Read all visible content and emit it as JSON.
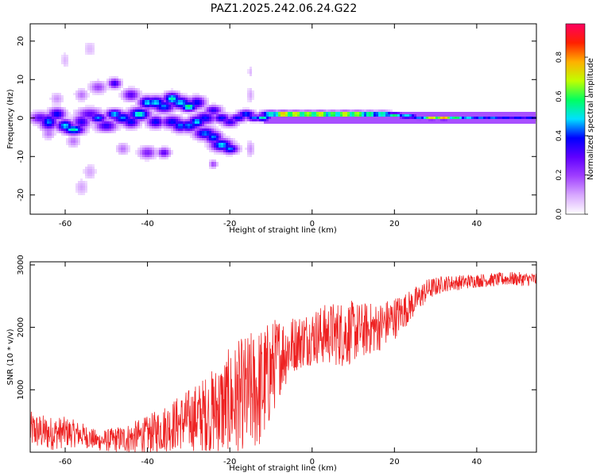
{
  "title": "PAZ1.2025.242.06.24.G22",
  "colors": {
    "axis": "#000000",
    "snr_line": "#ee2222",
    "colormap": [
      "#ffffff",
      "#d8a8ff",
      "#a040ff",
      "#6000ff",
      "#0000ff",
      "#00e0ff",
      "#00ff60",
      "#c0ff00",
      "#ffb000",
      "#ff2000",
      "#ff0060"
    ]
  },
  "chart_data": [
    {
      "type": "heatmap",
      "title": "PAZ1.2025.242.06.24.G22",
      "xlabel": "Height of straight line (km)",
      "ylabel": "Frequency (Hz)",
      "xlim": [
        -68.5,
        54.5
      ],
      "ylim": [
        -25,
        24.5
      ],
      "xticks": [
        -60,
        -40,
        -20,
        0,
        20,
        40
      ],
      "yticks": [
        -20,
        -10,
        0,
        10,
        20
      ],
      "colorbar": {
        "label": "Normalized spectral amplitude",
        "range": [
          0,
          0.97
        ],
        "ticks": [
          "0.0",
          "0.2",
          "0.4",
          "0.6",
          "0.8"
        ],
        "tick_values": [
          0,
          0.2,
          0.4,
          0.6,
          0.8
        ]
      },
      "blobs": [
        [
          -66,
          0,
          2.5,
          1.5,
          0.3
        ],
        [
          -64,
          -1,
          2,
          2,
          0.45
        ],
        [
          -62,
          1,
          2,
          1.5,
          0.4
        ],
        [
          -60,
          -2,
          2,
          1.5,
          0.5
        ],
        [
          -58,
          -3,
          2.5,
          1.2,
          0.55
        ],
        [
          -56,
          -1,
          2,
          1.8,
          0.35
        ],
        [
          -54,
          1,
          3,
          1.5,
          0.3
        ],
        [
          -52,
          0,
          2,
          1.2,
          0.45
        ],
        [
          -50,
          -2,
          2.5,
          1.5,
          0.35
        ],
        [
          -48,
          1,
          2,
          1.2,
          0.5
        ],
        [
          -46,
          0,
          2.5,
          1.5,
          0.45
        ],
        [
          -44,
          -1,
          2,
          1.5,
          0.4
        ],
        [
          -42,
          1,
          2.5,
          1.5,
          0.55
        ],
        [
          -40,
          4,
          2,
          1.5,
          0.5
        ],
        [
          -38,
          4,
          2.5,
          1.5,
          0.5
        ],
        [
          -36,
          3,
          2.5,
          1.5,
          0.45
        ],
        [
          -34,
          5,
          2,
          1.5,
          0.55
        ],
        [
          -32,
          4,
          2.5,
          1.5,
          0.5
        ],
        [
          -30,
          3,
          2,
          1.2,
          0.6
        ],
        [
          -28,
          4,
          2,
          1.5,
          0.4
        ],
        [
          -34,
          -1,
          2.5,
          1.5,
          0.4
        ],
        [
          -32,
          -2,
          2,
          1.5,
          0.45
        ],
        [
          -30,
          -2,
          2.5,
          1.5,
          0.45
        ],
        [
          -28,
          -1,
          2,
          1.5,
          0.5
        ],
        [
          -26,
          0,
          2.5,
          1.5,
          0.4
        ],
        [
          -38,
          -1,
          2,
          1.5,
          0.4
        ],
        [
          -26,
          -4,
          2.5,
          1.5,
          0.45
        ],
        [
          -24,
          -5,
          2,
          1.5,
          0.45
        ],
        [
          -22,
          -7,
          2.5,
          1.5,
          0.5
        ],
        [
          -20,
          -8,
          2,
          1.2,
          0.45
        ],
        [
          -24,
          2,
          2,
          1.2,
          0.35
        ],
        [
          -22,
          0,
          2,
          1.2,
          0.4
        ],
        [
          -20,
          -1,
          2,
          1.2,
          0.35
        ],
        [
          -18,
          0,
          2,
          1,
          0.4
        ],
        [
          -16,
          1,
          2,
          1,
          0.45
        ],
        [
          -14,
          0,
          2,
          0.8,
          0.45
        ],
        [
          -12,
          0,
          2,
          0.8,
          0.55
        ],
        [
          -10,
          1,
          2.5,
          0.8,
          0.6
        ],
        [
          -7,
          1,
          2.5,
          0.7,
          0.9
        ],
        [
          -4,
          1,
          2.5,
          0.7,
          0.85
        ],
        [
          -1,
          1,
          2.5,
          0.7,
          0.8
        ],
        [
          2,
          1,
          2.5,
          0.7,
          0.85
        ],
        [
          5,
          1,
          2,
          0.7,
          0.75
        ],
        [
          8,
          1,
          2.5,
          0.7,
          0.85
        ],
        [
          11,
          1,
          2.5,
          0.7,
          0.8
        ],
        [
          14,
          1,
          2,
          0.7,
          0.7
        ],
        [
          17,
          1,
          2.5,
          0.7,
          0.65
        ],
        [
          20,
          0.8,
          2.5,
          0.6,
          0.6
        ],
        [
          23,
          0.5,
          2.5,
          0.6,
          0.55
        ],
        [
          26,
          0,
          2.5,
          0.6,
          0.45
        ],
        [
          29,
          0,
          2.5,
          0.5,
          0.75
        ],
        [
          32,
          0,
          2.5,
          0.5,
          0.8
        ],
        [
          35,
          0,
          2.5,
          0.5,
          0.6
        ],
        [
          38,
          0,
          2.5,
          0.5,
          0.5
        ],
        [
          41,
          0,
          2.5,
          0.5,
          0.45
        ],
        [
          44,
          0,
          2.5,
          0.5,
          0.45
        ],
        [
          47,
          0,
          2.5,
          0.5,
          0.4
        ],
        [
          50,
          0,
          2.5,
          0.5,
          0.4
        ],
        [
          53,
          0,
          2.5,
          0.5,
          0.4
        ],
        [
          -48,
          9,
          1.5,
          1.2,
          0.35
        ],
        [
          -52,
          8,
          2,
          1.5,
          0.2
        ],
        [
          -44,
          6,
          2,
          1.5,
          0.3
        ],
        [
          -56,
          6,
          1.5,
          1.5,
          0.15
        ],
        [
          -62,
          5,
          1.5,
          1.5,
          0.12
        ],
        [
          -36,
          -9,
          1.5,
          1.2,
          0.3
        ],
        [
          -40,
          -9,
          2,
          1.5,
          0.25
        ],
        [
          -46,
          -8,
          1.5,
          1.5,
          0.15
        ],
        [
          -58,
          -6,
          1.5,
          1.5,
          0.15
        ],
        [
          -54,
          -14,
          1.5,
          2,
          0.1
        ],
        [
          -56,
          -18,
          1.5,
          2,
          0.1
        ],
        [
          -54,
          18,
          1.5,
          2,
          0.08
        ],
        [
          -60,
          15,
          1,
          2,
          0.08
        ],
        [
          -15,
          -8,
          1,
          2,
          0.12
        ],
        [
          -15,
          6,
          0.8,
          2,
          0.1
        ],
        [
          -15,
          12,
          0.6,
          1.5,
          0.08
        ],
        [
          -24,
          -12,
          1,
          1,
          0.2
        ],
        [
          -64,
          -4,
          1.5,
          1.5,
          0.15
        ]
      ],
      "band": {
        "x_from": -12,
        "x_to": 54.5,
        "y_center": 0,
        "half_width": 1.6,
        "strength": 0.18
      }
    },
    {
      "type": "line",
      "title": "",
      "xlabel": "Height of straight line (km)",
      "ylabel": "SNR (10 * v/v)",
      "xlim": [
        -68.5,
        54.5
      ],
      "ylim": [
        0,
        3050
      ],
      "xticks": [
        -60,
        -40,
        -20,
        0,
        20,
        40
      ],
      "yticks": [
        1000,
        2000,
        3000
      ],
      "series": [
        {
          "name": "SNR",
          "x": [
            -68,
            -64,
            -60,
            -56,
            -52,
            -48,
            -44,
            -40,
            -36,
            -32,
            -28,
            -24,
            -20,
            -16,
            -12,
            -8,
            -4,
            0,
            4,
            8,
            12,
            16,
            20,
            24,
            28,
            32,
            36,
            40,
            44,
            48,
            52,
            54
          ],
          "mean": [
            350,
            300,
            320,
            280,
            180,
            200,
            230,
            280,
            380,
            480,
            560,
            650,
            780,
            900,
            1050,
            1550,
            1750,
            1850,
            1900,
            1900,
            1950,
            2000,
            2150,
            2350,
            2600,
            2700,
            2720,
            2750,
            2760,
            2780,
            2770,
            2770
          ],
          "amplitude": [
            300,
            280,
            250,
            200,
            160,
            200,
            250,
            300,
            380,
            450,
            550,
            700,
            900,
            1000,
            1000,
            650,
            450,
            450,
            500,
            550,
            450,
            400,
            350,
            250,
            180,
            130,
            120,
            110,
            110,
            110,
            110,
            110
          ]
        }
      ]
    }
  ]
}
